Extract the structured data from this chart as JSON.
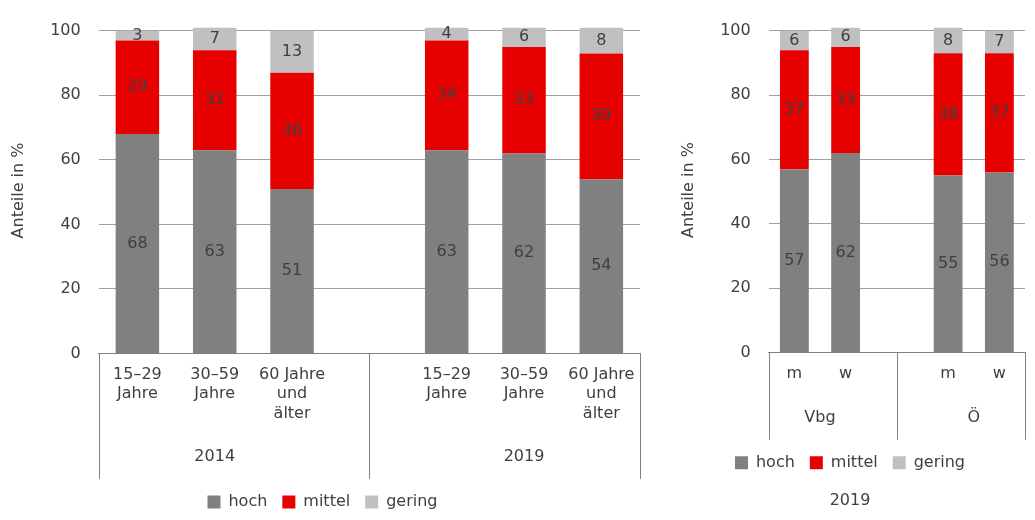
{
  "chart_data": [
    {
      "type": "bar",
      "stacked": true,
      "categories": [
        "15–29 Jahre",
        "30–59 Jahre",
        "60 Jahre und älter",
        null,
        "15–29 Jahre",
        "30–59 Jahre",
        "60 Jahre und älter"
      ],
      "series": [
        {
          "name": "hoch",
          "color": "#808080",
          "values": [
            68,
            63,
            51,
            null,
            63,
            62,
            54
          ]
        },
        {
          "name": "mittel",
          "color": "#e60000",
          "values": [
            29,
            31,
            36,
            null,
            34,
            33,
            39
          ]
        },
        {
          "name": "gering",
          "color": "#c0c0c0",
          "values": [
            3,
            7,
            13,
            null,
            4,
            6,
            8
          ]
        }
      ],
      "ylim": [
        0,
        101
      ],
      "yticks": [
        0,
        20,
        40,
        60,
        80,
        100
      ],
      "ylabel": "Anteile in %",
      "grid": "y",
      "legend": "bottom",
      "data_labels": true,
      "annotations": [
        "2014",
        "2019"
      ]
    },
    {
      "type": "bar",
      "stacked": true,
      "title": "2019",
      "categories": [
        "m",
        "w",
        null,
        "m",
        "w"
      ],
      "series": [
        {
          "name": "hoch",
          "color": "#808080",
          "values": [
            57,
            62,
            null,
            55,
            56
          ]
        },
        {
          "name": "mittel",
          "color": "#e60000",
          "values": [
            37,
            33,
            null,
            38,
            37
          ]
        },
        {
          "name": "gering",
          "color": "#c0c0c0",
          "values": [
            6,
            6,
            null,
            8,
            7
          ]
        }
      ],
      "ylim": [
        0,
        101
      ],
      "yticks": [
        0,
        20,
        40,
        60,
        80,
        100
      ],
      "ylabel": "Anteile in %",
      "grid": "y",
      "legend": "bottom",
      "data_labels": true,
      "annotations": [
        "Vbg",
        "Ö"
      ]
    }
  ]
}
